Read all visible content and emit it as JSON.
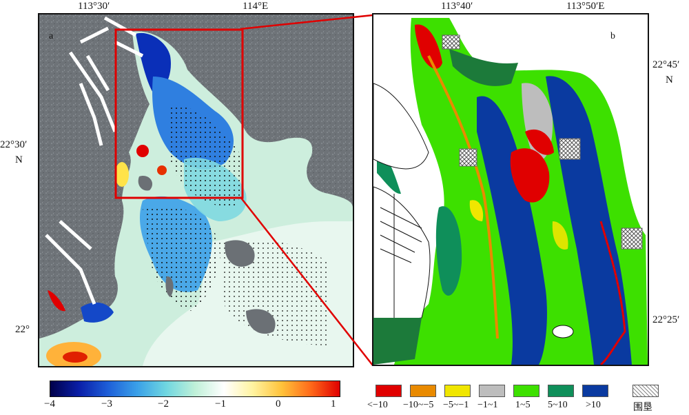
{
  "panel_a": {
    "label": "a",
    "top_ticks": [
      "113°30′",
      "114°E"
    ],
    "left_ticks": [
      "22°30′",
      "N",
      "22°"
    ],
    "colorbar_ticks": [
      "−4",
      "−3",
      "−2",
      "−1",
      "0",
      "1"
    ],
    "colorbar_range": [
      -4,
      1.1
    ],
    "colors": [
      "#00004a",
      "#0a1fa8",
      "#1e5fd8",
      "#3aa0e8",
      "#6fd6e0",
      "#bff0d8",
      "#ffffff",
      "#fff3a0",
      "#ffc23a",
      "#ff6a1a",
      "#e00000"
    ]
  },
  "panel_b": {
    "label": "b",
    "top_ticks": [
      "113°40′",
      "113°50′E"
    ],
    "right_ticks": [
      "22°45′",
      "N",
      "22°25′"
    ]
  },
  "legend": {
    "items": [
      {
        "label": "<−10",
        "color": "#e00000"
      },
      {
        "label": "−10~−5",
        "color": "#e98a00"
      },
      {
        "label": "−5~−1",
        "color": "#f0e600"
      },
      {
        "label": "−1~1",
        "color": "#bdbdbd"
      },
      {
        "label": "1~5",
        "color": "#3de000"
      },
      {
        "label": "5~10",
        "color": "#0f8f5a"
      },
      {
        "label": ">10",
        "color": "#0a3aa0"
      },
      {
        "label": "围垦",
        "color": "hatch"
      }
    ]
  }
}
